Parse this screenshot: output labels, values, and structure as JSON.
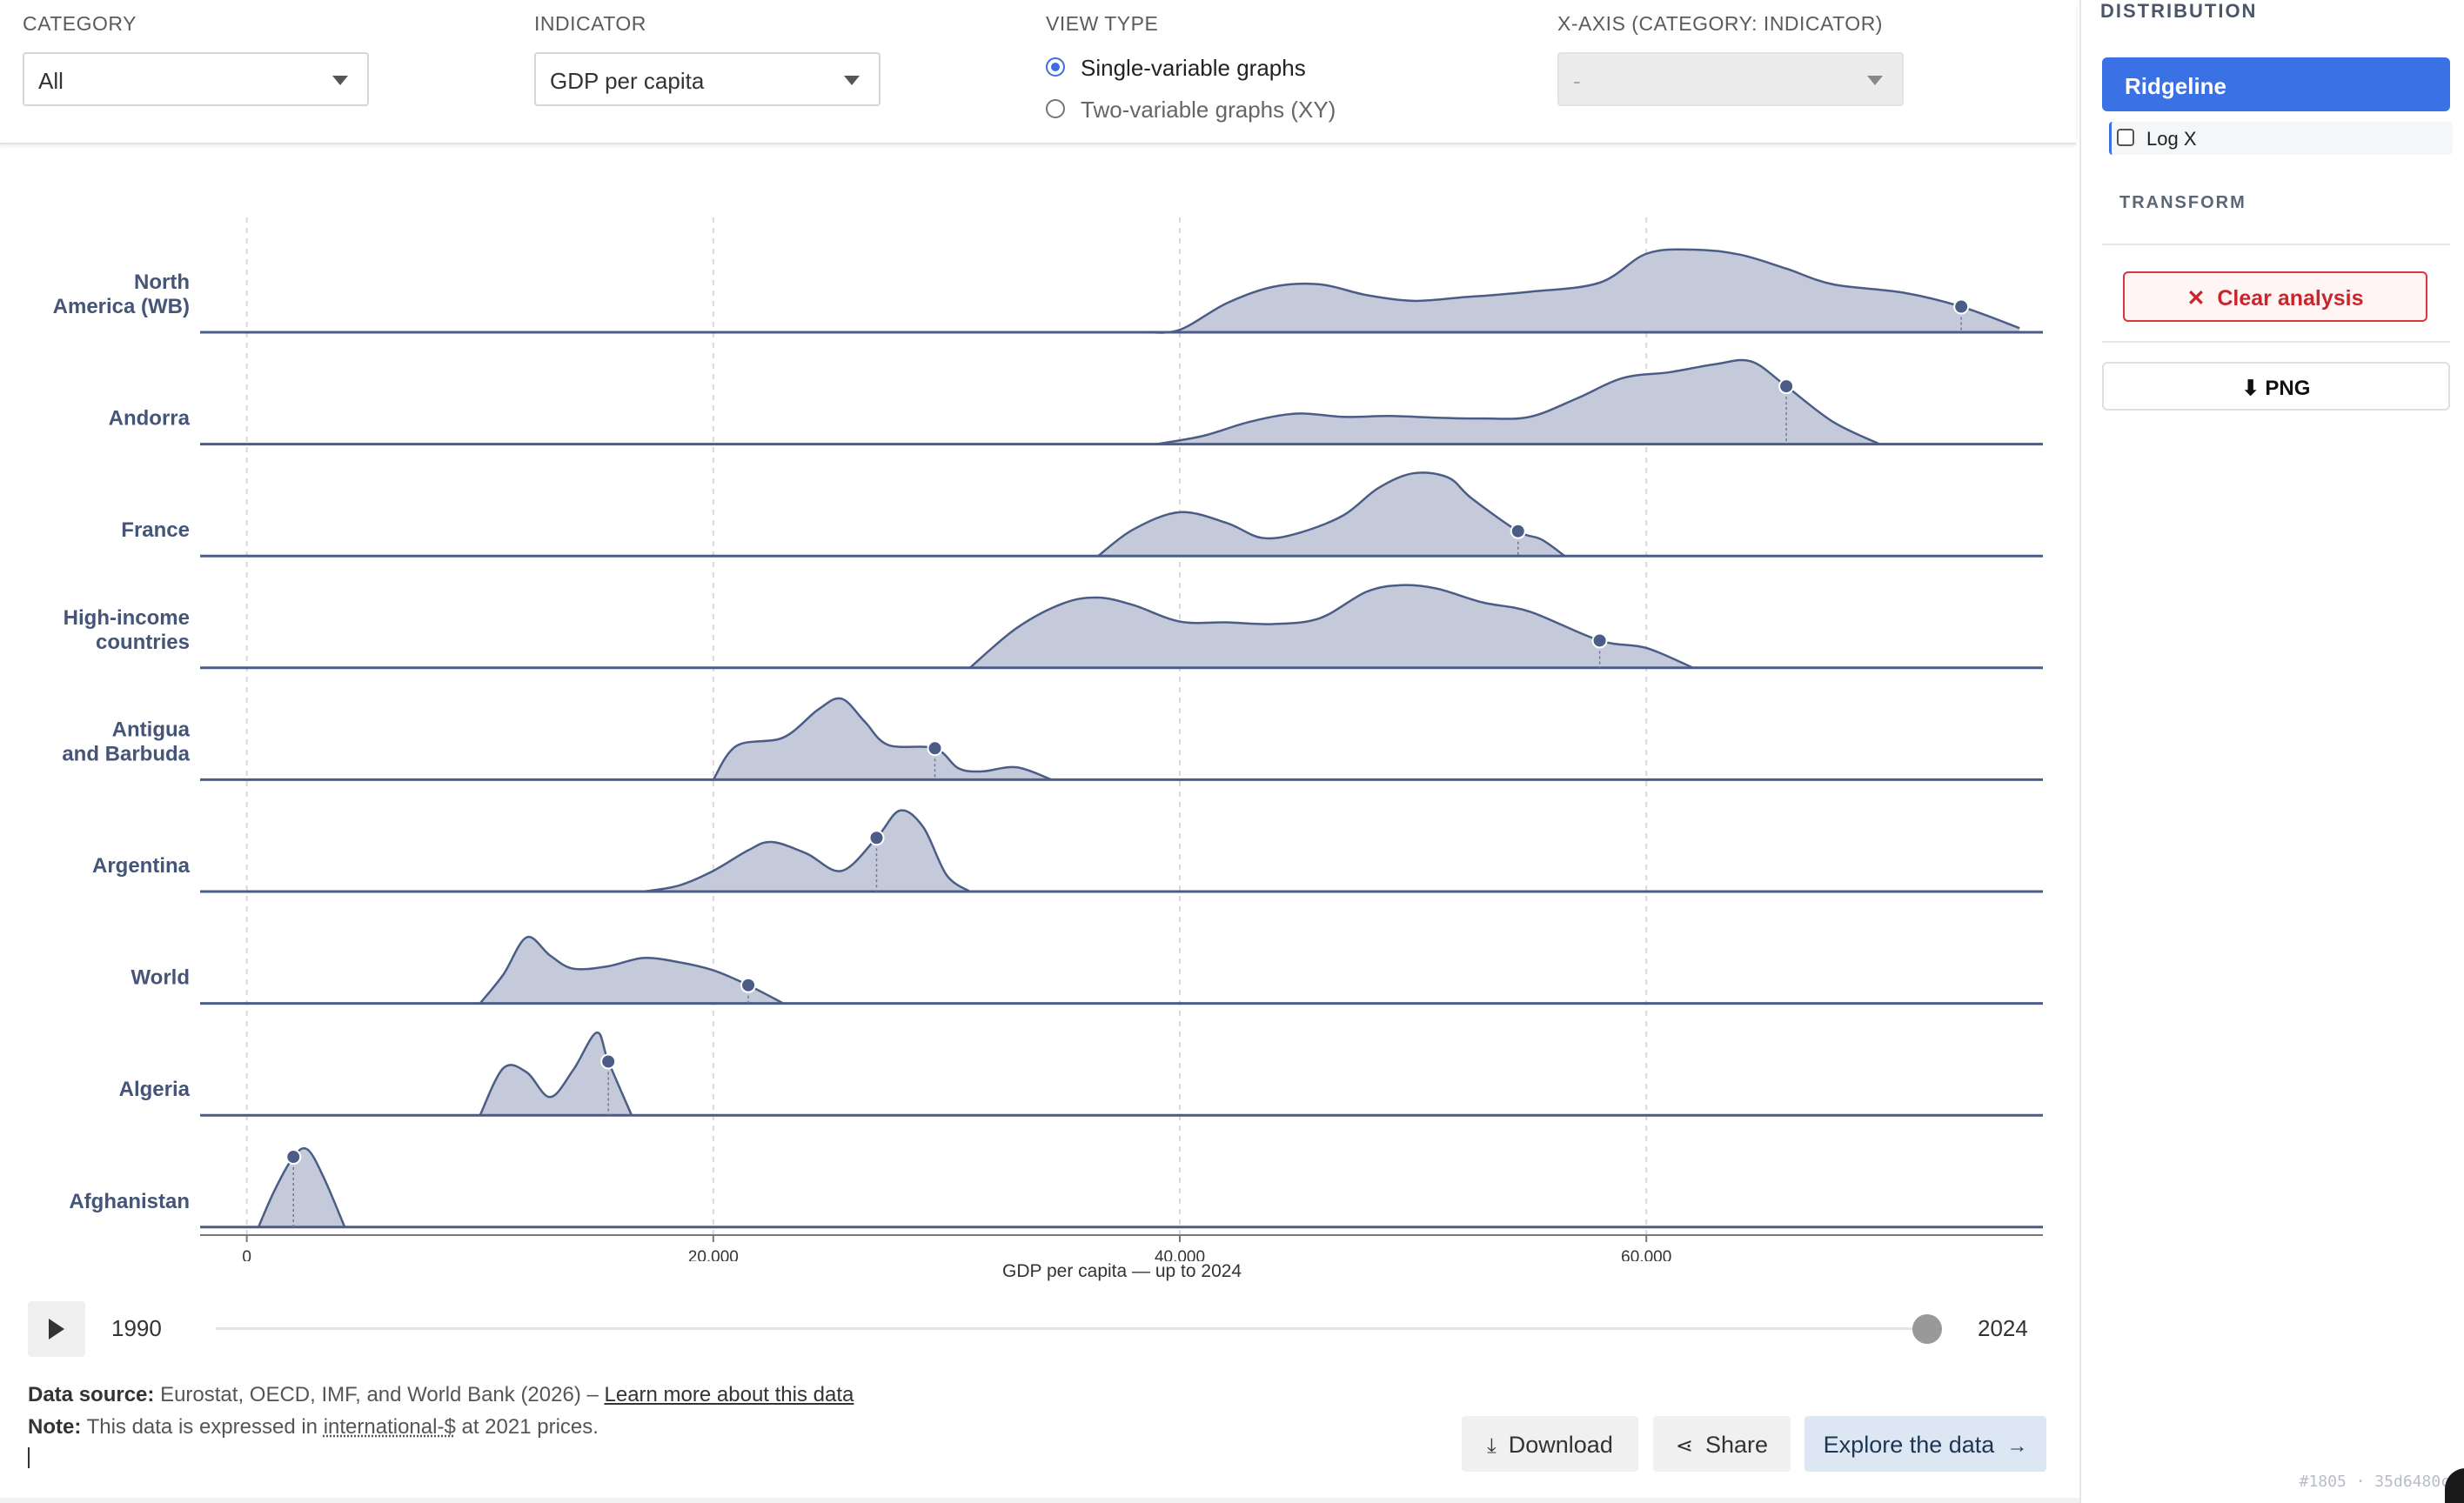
{
  "controls": {
    "category": {
      "label": "CATEGORY",
      "value": "All"
    },
    "indicator": {
      "label": "INDICATOR",
      "value": "GDP per capita"
    },
    "view_type": {
      "label": "VIEW TYPE",
      "option_single": "Single-variable graphs",
      "option_xy": "Two-variable graphs (XY)",
      "selected": "Single-variable graphs"
    },
    "x_axis": {
      "label": "X-AXIS (CATEGORY: INDICATOR)",
      "value": "-"
    }
  },
  "sidebar": {
    "title": "DISTRIBUTION",
    "ridgeline_label": "Ridgeline",
    "logx_label": "Log X",
    "transform_label": "TRANSFORM",
    "clear_label": "Clear analysis",
    "clear_icon": "x-icon",
    "png_label": "PNG",
    "png_icon": "download-arrow-icon",
    "corner_tag": "#1805 · 35d6480c"
  },
  "chart_data": {
    "type": "ridgeline",
    "xlabel": "GDP per capita — up to 2024",
    "xlim": [
      -2000,
      77000
    ],
    "xticks": [
      0,
      20000,
      40000,
      60000
    ],
    "xtick_labels": [
      "0",
      "20,000",
      "40,000",
      "60,000"
    ],
    "grid": "vertical dashed",
    "fill_color": "#c5cadb",
    "line_color": "#4b5d86",
    "rows": [
      {
        "label": "North America (WB)",
        "marker": 73500,
        "density": [
          [
            38500,
            0
          ],
          [
            40000,
            0.03
          ],
          [
            42000,
            0.35
          ],
          [
            44000,
            0.55
          ],
          [
            46000,
            0.58
          ],
          [
            48000,
            0.45
          ],
          [
            50000,
            0.38
          ],
          [
            52000,
            0.42
          ],
          [
            55000,
            0.49
          ],
          [
            58000,
            0.6
          ],
          [
            60000,
            0.95
          ],
          [
            62000,
            1.0
          ],
          [
            64000,
            0.94
          ],
          [
            66000,
            0.77
          ],
          [
            68000,
            0.58
          ],
          [
            71000,
            0.48
          ],
          [
            73500,
            0.31
          ],
          [
            76000,
            0.05
          ]
        ]
      },
      {
        "label": "Andorra",
        "marker": 66000,
        "density": [
          [
            39000,
            0
          ],
          [
            41000,
            0.1
          ],
          [
            43000,
            0.27
          ],
          [
            45000,
            0.37
          ],
          [
            47000,
            0.33
          ],
          [
            49000,
            0.34
          ],
          [
            51000,
            0.32
          ],
          [
            53000,
            0.31
          ],
          [
            55000,
            0.33
          ],
          [
            57000,
            0.55
          ],
          [
            59000,
            0.8
          ],
          [
            61000,
            0.87
          ],
          [
            63000,
            0.97
          ],
          [
            64500,
            1.0
          ],
          [
            66000,
            0.7
          ],
          [
            68000,
            0.27
          ],
          [
            70000,
            0.0
          ]
        ]
      },
      {
        "label": "France",
        "marker": 54500,
        "density": [
          [
            36500,
            0
          ],
          [
            38000,
            0.32
          ],
          [
            40000,
            0.53
          ],
          [
            42000,
            0.4
          ],
          [
            43500,
            0.22
          ],
          [
            45000,
            0.27
          ],
          [
            47000,
            0.49
          ],
          [
            48500,
            0.82
          ],
          [
            50000,
            1.0
          ],
          [
            51500,
            0.95
          ],
          [
            52500,
            0.7
          ],
          [
            54500,
            0.3
          ],
          [
            55500,
            0.2
          ],
          [
            56500,
            0.0
          ]
        ]
      },
      {
        "label": "High-income countries",
        "marker": 58000,
        "density": [
          [
            31000,
            0
          ],
          [
            33000,
            0.48
          ],
          [
            35000,
            0.78
          ],
          [
            36500,
            0.85
          ],
          [
            38000,
            0.76
          ],
          [
            40000,
            0.56
          ],
          [
            42000,
            0.55
          ],
          [
            44000,
            0.53
          ],
          [
            46000,
            0.6
          ],
          [
            48000,
            0.92
          ],
          [
            49500,
            1.0
          ],
          [
            51000,
            0.96
          ],
          [
            53000,
            0.79
          ],
          [
            55000,
            0.68
          ],
          [
            58000,
            0.33
          ],
          [
            60000,
            0.24
          ],
          [
            62000,
            0.0
          ]
        ]
      },
      {
        "label": "Antigua and Barbuda",
        "marker": 29500,
        "density": [
          [
            20000,
            0
          ],
          [
            21000,
            0.41
          ],
          [
            23000,
            0.51
          ],
          [
            24500,
            0.85
          ],
          [
            25500,
            0.98
          ],
          [
            26500,
            0.7
          ],
          [
            27500,
            0.42
          ],
          [
            29500,
            0.38
          ],
          [
            30500,
            0.14
          ],
          [
            31500,
            0.1
          ],
          [
            33000,
            0.15
          ],
          [
            34500,
            0.0
          ]
        ]
      },
      {
        "label": "Argentina",
        "marker": 27000,
        "density": [
          [
            17000,
            0
          ],
          [
            18500,
            0.07
          ],
          [
            20000,
            0.25
          ],
          [
            21500,
            0.5
          ],
          [
            22500,
            0.6
          ],
          [
            24000,
            0.46
          ],
          [
            25500,
            0.25
          ],
          [
            27000,
            0.65
          ],
          [
            28000,
            0.98
          ],
          [
            29000,
            0.78
          ],
          [
            30000,
            0.2
          ],
          [
            31000,
            0.0
          ]
        ]
      },
      {
        "label": "World",
        "marker": 21500,
        "density": [
          [
            10000,
            0
          ],
          [
            11000,
            0.35
          ],
          [
            12000,
            0.8
          ],
          [
            13000,
            0.58
          ],
          [
            14000,
            0.42
          ],
          [
            15500,
            0.45
          ],
          [
            17000,
            0.55
          ],
          [
            18500,
            0.5
          ],
          [
            20000,
            0.4
          ],
          [
            21500,
            0.22
          ],
          [
            23000,
            0.0
          ]
        ]
      },
      {
        "label": "Algeria",
        "marker": 15500,
        "density": [
          [
            10000,
            0
          ],
          [
            11000,
            0.57
          ],
          [
            12000,
            0.52
          ],
          [
            13000,
            0.22
          ],
          [
            14000,
            0.55
          ],
          [
            15000,
            1.0
          ],
          [
            15500,
            0.65
          ],
          [
            16500,
            0.0
          ]
        ]
      },
      {
        "label": "Afghanistan",
        "marker": 2000,
        "density": [
          [
            500,
            0
          ],
          [
            1200,
            0.45
          ],
          [
            2000,
            0.85
          ],
          [
            2600,
            0.94
          ],
          [
            3300,
            0.6
          ],
          [
            4200,
            0.0
          ]
        ]
      }
    ]
  },
  "timeline": {
    "start_year": "1990",
    "end_year": "2024",
    "progress": 1.0
  },
  "footer": {
    "source_label": "Data source:",
    "source_text": "Eurostat, OECD, IMF, and World Bank (2026) –",
    "source_link": "Learn more about this data",
    "note_label": "Note:",
    "note_pre": "This data is expressed in",
    "note_link": "international-$",
    "note_post": "at 2021 prices.",
    "download_label": "Download",
    "share_label": "Share",
    "explore_label": "Explore the data"
  }
}
